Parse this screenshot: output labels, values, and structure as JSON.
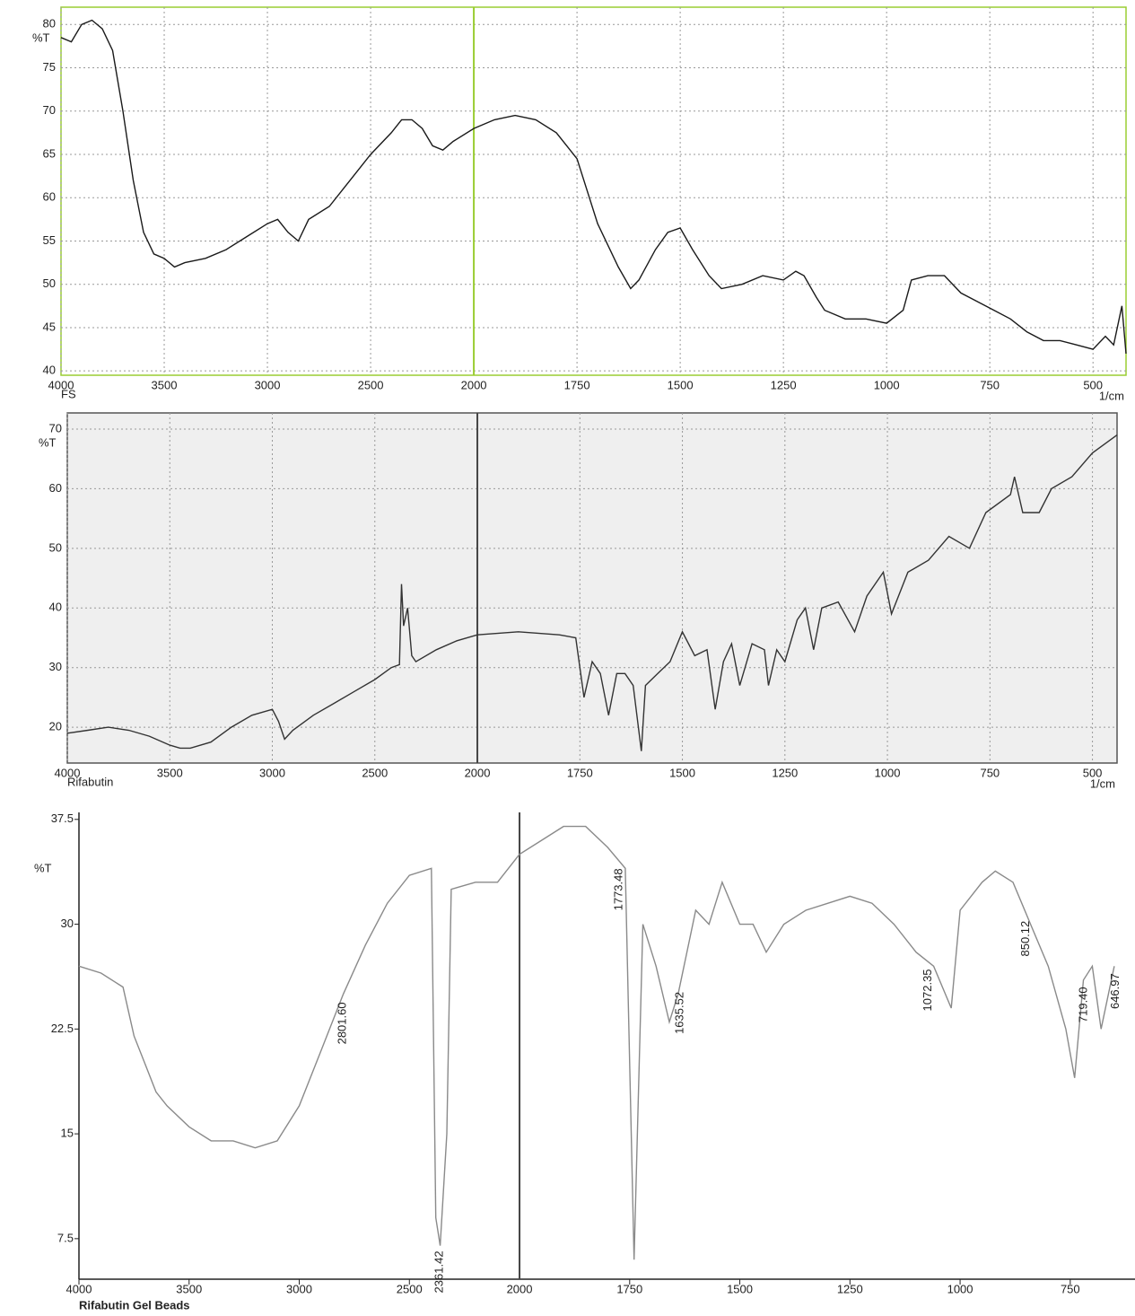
{
  "chart_data": [
    {
      "type": "line",
      "y_label": "%T",
      "x_label": "1/cm",
      "caption": "FS",
      "color": "#1a1a1a",
      "grid": true,
      "frame_color": "#9acd32",
      "xlim": [
        4000,
        420
      ],
      "ylim": [
        39.5,
        82
      ],
      "xticks": [
        4000,
        3500,
        3000,
        2500,
        2000,
        1750,
        1500,
        1250,
        1000,
        750,
        500
      ],
      "yticks": [
        40,
        45,
        50,
        55,
        60,
        65,
        70,
        75,
        80
      ],
      "x": [
        4000,
        3950,
        3900,
        3850,
        3800,
        3750,
        3700,
        3650,
        3600,
        3550,
        3500,
        3450,
        3400,
        3300,
        3200,
        3100,
        3000,
        2950,
        2900,
        2850,
        2800,
        2700,
        2600,
        2500,
        2400,
        2350,
        2300,
        2250,
        2200,
        2150,
        2100,
        2000,
        1950,
        1900,
        1850,
        1800,
        1750,
        1700,
        1650,
        1620,
        1600,
        1560,
        1530,
        1500,
        1470,
        1430,
        1400,
        1350,
        1300,
        1250,
        1220,
        1200,
        1170,
        1150,
        1100,
        1050,
        1000,
        960,
        940,
        900,
        860,
        820,
        780,
        740,
        700,
        660,
        620,
        580,
        540,
        500,
        470,
        450,
        430,
        420
      ],
      "values": [
        78.5,
        78,
        80,
        80.5,
        79.5,
        77,
        70,
        62,
        56,
        53.5,
        53,
        52,
        52.5,
        53,
        54,
        55.5,
        57,
        57.5,
        56,
        55,
        57.5,
        59,
        62,
        65,
        67.5,
        69,
        69,
        68,
        66,
        65.5,
        66.5,
        68,
        69,
        69.5,
        69,
        67.5,
        64.5,
        57,
        52,
        49.5,
        50.5,
        54,
        56,
        56.5,
        54,
        51,
        49.5,
        50,
        51,
        50.5,
        51.5,
        51,
        48.5,
        47,
        46,
        46,
        45.5,
        47,
        50.5,
        51,
        51,
        49,
        48,
        47,
        46,
        44.5,
        43.5,
        43.5,
        43,
        42.5,
        44,
        43,
        47.5,
        42
      ]
    },
    {
      "type": "line",
      "y_label": "%T",
      "x_label": "1/cm",
      "caption": "Rifabutin",
      "color": "#333333",
      "grid": true,
      "frame_color": "#555555",
      "xlim": [
        4000,
        440
      ],
      "ylim": [
        14,
        72.7
      ],
      "xticks": [
        4000,
        3500,
        3000,
        2500,
        2000,
        1750,
        1500,
        1250,
        1000,
        750,
        500
      ],
      "yticks": [
        20,
        30,
        40,
        50,
        60,
        70
      ],
      "x": [
        4000,
        3900,
        3800,
        3700,
        3600,
        3500,
        3450,
        3400,
        3300,
        3200,
        3100,
        3000,
        2970,
        2940,
        2900,
        2800,
        2700,
        2600,
        2500,
        2420,
        2380,
        2370,
        2360,
        2340,
        2320,
        2300,
        2200,
        2100,
        2000,
        1900,
        1800,
        1760,
        1740,
        1720,
        1700,
        1680,
        1660,
        1640,
        1620,
        1600,
        1590,
        1560,
        1530,
        1500,
        1470,
        1440,
        1420,
        1400,
        1380,
        1360,
        1330,
        1300,
        1290,
        1270,
        1250,
        1220,
        1200,
        1180,
        1160,
        1120,
        1080,
        1050,
        1010,
        990,
        950,
        900,
        850,
        800,
        760,
        700,
        690,
        670,
        630,
        600,
        550,
        500,
        460,
        440
      ],
      "values": [
        19,
        19.5,
        20,
        19.5,
        18.5,
        17,
        16.5,
        16.5,
        17.5,
        20,
        22,
        23,
        21,
        18,
        19.5,
        22,
        24,
        26,
        28,
        30,
        30.5,
        44,
        37,
        40,
        32,
        31,
        33,
        34.5,
        35.5,
        36,
        35.5,
        35,
        25,
        31,
        29,
        22,
        29,
        29,
        27,
        16,
        27,
        29,
        31,
        36,
        32,
        33,
        23,
        31,
        34,
        27,
        34,
        33,
        27,
        33,
        31,
        38,
        40,
        33,
        40,
        41,
        36,
        42,
        46,
        39,
        46,
        48,
        52,
        50,
        56,
        59,
        62,
        56,
        56,
        60,
        62,
        66,
        68,
        69
      ]
    },
    {
      "type": "line",
      "y_label": "%T",
      "caption": "Rifabutin Gel Beads",
      "color": "#8a8a8a",
      "grid": false,
      "frame_color": "#222222",
      "annotation_color": "#9a3a10",
      "xlim": [
        4000,
        603
      ],
      "ylim": [
        4.6,
        38
      ],
      "xticks": [
        4000,
        3500,
        3000,
        2500,
        2000,
        1750,
        1500,
        1250,
        1000,
        750
      ],
      "yticks": [
        7.5,
        15,
        22.5,
        30,
        37.5
      ],
      "x": [
        4000,
        3900,
        3800,
        3750,
        3700,
        3650,
        3600,
        3500,
        3400,
        3300,
        3200,
        3100,
        3000,
        2900,
        2800,
        2700,
        2600,
        2500,
        2400,
        2380,
        2360,
        2330,
        2310,
        2200,
        2100,
        2000,
        1950,
        1900,
        1850,
        1800,
        1760,
        1740,
        1720,
        1690,
        1660,
        1640,
        1600,
        1570,
        1540,
        1500,
        1470,
        1440,
        1400,
        1350,
        1300,
        1250,
        1200,
        1150,
        1100,
        1060,
        1020,
        1000,
        950,
        920,
        880,
        840,
        800,
        760,
        740,
        720,
        700,
        680,
        650
      ],
      "values": [
        27,
        26.5,
        25.5,
        22,
        20,
        18,
        17,
        15.5,
        14.5,
        14.5,
        14,
        14.5,
        17,
        21,
        25,
        28.5,
        31.5,
        33.5,
        34,
        9,
        7,
        15,
        32.5,
        33,
        33,
        35,
        36,
        37,
        37,
        35.5,
        34,
        6,
        30,
        27,
        23,
        25,
        31,
        30,
        33,
        30,
        30,
        28,
        30,
        31,
        31.5,
        32,
        31.5,
        30,
        28,
        27,
        24,
        31,
        33,
        33.8,
        33,
        30,
        27,
        22.5,
        19,
        26,
        27,
        22.5,
        27
      ],
      "annotations": [
        {
          "text": "2361.42",
          "x": 2361.42
        },
        {
          "text": "2801.60",
          "x": 2801.6
        },
        {
          "text": "1773.48",
          "x": 1773.48
        },
        {
          "text": "1635.52",
          "x": 1635.52
        },
        {
          "text": "1072.35",
          "x": 1072.35
        },
        {
          "text": "850.12",
          "x": 850.12
        },
        {
          "text": "719.40",
          "x": 719.4
        },
        {
          "text": "646.97",
          "x": 646.97
        }
      ]
    }
  ]
}
